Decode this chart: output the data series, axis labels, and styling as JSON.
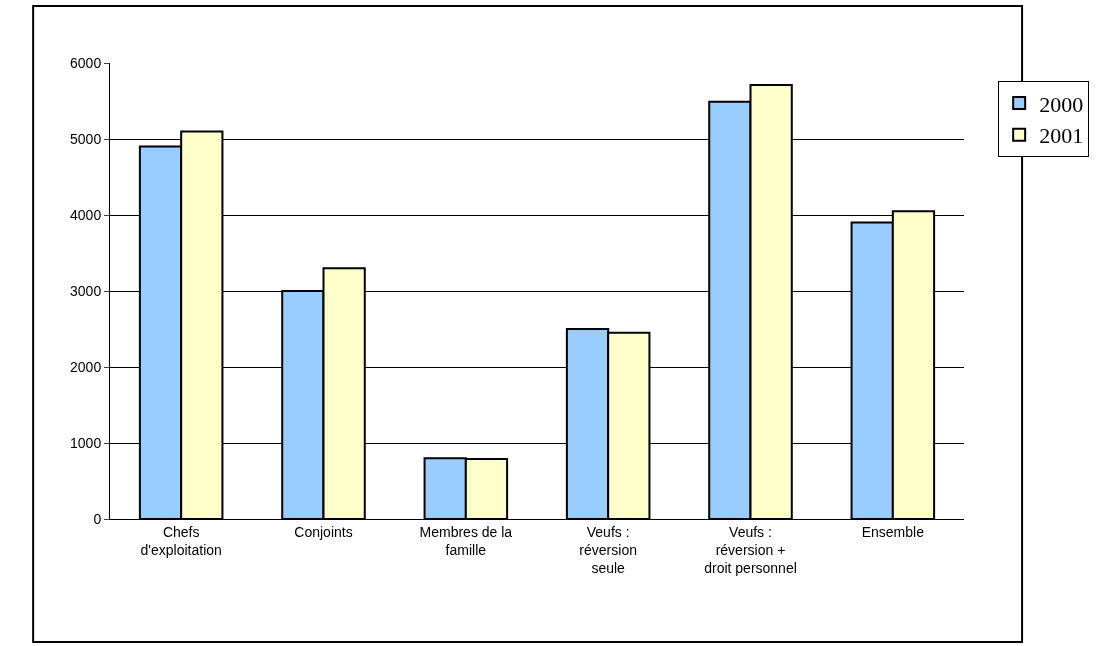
{
  "chart_data": {
    "type": "bar",
    "categories": [
      "Chefs\nd'exploitation",
      "Conjoints",
      "Membres de la\nfamille",
      "Veufs :\nréversion\nseule",
      "Veufs :\nréversion +\ndroit personnel",
      "Ensemble"
    ],
    "series": [
      {
        "name": "2000",
        "color": "#99ccff",
        "values": [
          4900,
          3000,
          800,
          2500,
          5490,
          3900
        ]
      },
      {
        "name": "2001",
        "color": "#ffffcc",
        "values": [
          5100,
          3300,
          790,
          2450,
          5710,
          4050
        ]
      }
    ],
    "ylim": [
      0,
      6000
    ],
    "yticks": [
      0,
      1000,
      2000,
      3000,
      4000,
      5000,
      6000
    ],
    "grid": "y",
    "legend": "top right"
  }
}
